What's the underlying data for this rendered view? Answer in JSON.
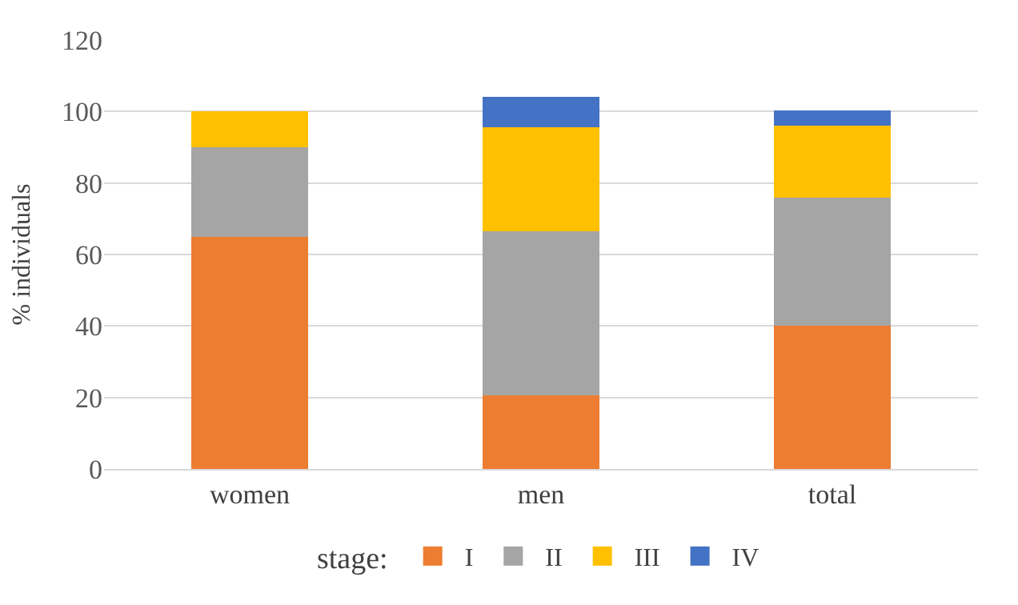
{
  "chart_data": {
    "type": "bar",
    "stacked": true,
    "ylabel": "% individuals",
    "legend_title": "stage:",
    "categories": [
      "women",
      "men",
      "total"
    ],
    "series": [
      {
        "name": "I",
        "color": "#ed7d31",
        "values": [
          65,
          20.5,
          40
        ]
      },
      {
        "name": "II",
        "color": "#a5a5a5",
        "values": [
          25,
          46,
          36
        ]
      },
      {
        "name": "III",
        "color": "#ffc000",
        "values": [
          10,
          29,
          20
        ]
      },
      {
        "name": "IV",
        "color": "#4472c4",
        "values": [
          null,
          8.5,
          4.3
        ]
      }
    ],
    "ylim": [
      0,
      120
    ],
    "yticks": [
      0,
      20,
      40,
      60,
      80,
      100,
      120
    ],
    "grid": "y",
    "legend": "bottom"
  }
}
